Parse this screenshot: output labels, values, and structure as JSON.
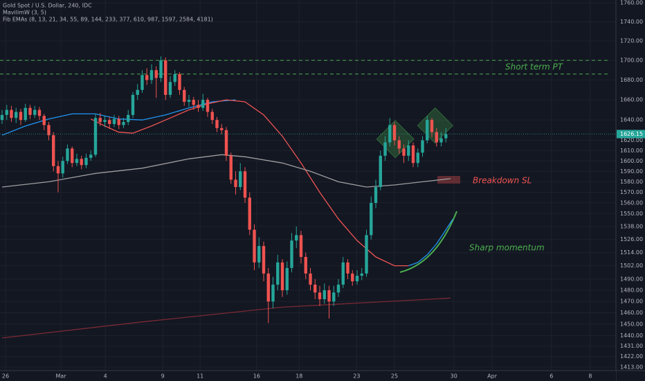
{
  "chart_data": {
    "type": "candlestick",
    "title": "Gold Spot / U.S. Dollar, 240, IDC",
    "indicators": [
      "MavilimW (3, 5)",
      "Fib EMAs (8, 13, 21, 34, 55, 89, 144, 233, 377, 610, 987, 1597, 2584, 4181)"
    ],
    "up_color": "#26a69a",
    "down_color": "#ef5350",
    "log": true,
    "grid": true,
    "xlim": [
      -0.44,
      131.4
    ],
    "ylim": [
      1410,
      1763
    ],
    "xticks": [
      {
        "value": 0.74,
        "label": "26"
      },
      {
        "value": 12.6,
        "label": "Mar"
      },
      {
        "value": 22.1,
        "label": "4"
      },
      {
        "value": 34.4,
        "label": "9"
      },
      {
        "value": 42.4,
        "label": "11"
      },
      {
        "value": 54.5,
        "label": "16"
      },
      {
        "value": 63.6,
        "label": "18"
      },
      {
        "value": 75.9,
        "label": "23"
      },
      {
        "value": 84,
        "label": "25"
      },
      {
        "value": 96.7,
        "label": "30"
      },
      {
        "value": 104.9,
        "label": "Apr"
      },
      {
        "value": 117.6,
        "label": "6"
      },
      {
        "value": 125.9,
        "label": "8"
      }
    ],
    "yticks": [
      {
        "value": 1760,
        "label": "1760.00"
      },
      {
        "value": 1740,
        "label": "1740.00"
      },
      {
        "value": 1720,
        "label": "1720.00"
      },
      {
        "value": 1700,
        "label": "1700.00"
      },
      {
        "value": 1680,
        "label": "1680.00"
      },
      {
        "value": 1660,
        "label": "1660.00"
      },
      {
        "value": 1640,
        "label": "1640.00"
      },
      {
        "value": 1620,
        "label": "1620.00"
      },
      {
        "value": 1610,
        "label": "1610.00"
      },
      {
        "value": 1600,
        "label": "1600.00"
      },
      {
        "value": 1590,
        "label": "1590.00"
      },
      {
        "value": 1580,
        "label": "1580.00"
      },
      {
        "value": 1570,
        "label": "1570.00"
      },
      {
        "value": 1560,
        "label": "1560.00"
      },
      {
        "value": 1550,
        "label": "1550.00"
      },
      {
        "value": 1538,
        "label": "1538.00"
      },
      {
        "value": 1526,
        "label": "1526.00"
      },
      {
        "value": 1514,
        "label": "1514.00"
      },
      {
        "value": 1502,
        "label": "1502.00"
      },
      {
        "value": 1490,
        "label": "1490.00"
      },
      {
        "value": 1480,
        "label": "1480.00"
      },
      {
        "value": 1470,
        "label": "1470.00"
      },
      {
        "value": 1460,
        "label": "1460.00"
      },
      {
        "value": 1450,
        "label": "1450.00"
      },
      {
        "value": 1440,
        "label": "1440.00"
      },
      {
        "value": 1431,
        "label": "1431.00"
      },
      {
        "value": 1422,
        "label": "1422.00"
      },
      {
        "value": 1413,
        "label": "1413.00"
      }
    ],
    "open": [
      1640,
      1645,
      1650,
      1642,
      1648,
      1640,
      1652,
      1645,
      1650,
      1644,
      1635,
      1625,
      1595,
      1588,
      1600,
      1612,
      1598,
      1602,
      1596,
      1603,
      1606,
      1642,
      1638,
      1640,
      1636,
      1641,
      1635,
      1638,
      1645,
      1665,
      1670,
      1685,
      1680,
      1690,
      1682,
      1700,
      1665,
      1678,
      1686,
      1670,
      1658,
      1660,
      1655,
      1652,
      1660,
      1648,
      1640,
      1632,
      1630,
      1605,
      1582,
      1575,
      1590,
      1565,
      1535,
      1505,
      1520,
      1495,
      1470,
      1485,
      1505,
      1480,
      1500,
      1525,
      1530,
      1510,
      1495,
      1485,
      1478,
      1472,
      1480,
      1470,
      1478,
      1485,
      1505,
      1495,
      1488,
      1493,
      1495,
      1530,
      1560,
      1575,
      1605,
      1618,
      1635,
      1620,
      1612,
      1605,
      1615,
      1598,
      1608,
      1620,
      1640,
      1628,
      1618,
      1622
    ],
    "high": [
      1650,
      1655,
      1654,
      1652,
      1651,
      1656,
      1655,
      1654,
      1653,
      1646,
      1638,
      1628,
      1600,
      1604,
      1616,
      1614,
      1607,
      1605,
      1607,
      1610,
      1646,
      1647,
      1644,
      1643,
      1645,
      1644,
      1642,
      1650,
      1668,
      1676,
      1690,
      1692,
      1696,
      1694,
      1704,
      1703,
      1684,
      1690,
      1688,
      1673,
      1665,
      1663,
      1660,
      1666,
      1662,
      1651,
      1643,
      1636,
      1633,
      1608,
      1590,
      1598,
      1594,
      1570,
      1540,
      1528,
      1524,
      1500,
      1492,
      1512,
      1508,
      1506,
      1532,
      1538,
      1534,
      1514,
      1500,
      1490,
      1484,
      1486,
      1484,
      1484,
      1490,
      1510,
      1508,
      1498,
      1498,
      1500,
      1535,
      1566,
      1582,
      1610,
      1624,
      1642,
      1638,
      1624,
      1616,
      1620,
      1618,
      1612,
      1624,
      1644,
      1642,
      1632,
      1628,
      1632
    ],
    "low": [
      1636,
      1640,
      1638,
      1637,
      1635,
      1638,
      1641,
      1642,
      1640,
      1630,
      1620,
      1590,
      1570,
      1584,
      1597,
      1594,
      1595,
      1592,
      1593,
      1600,
      1604,
      1634,
      1633,
      1631,
      1633,
      1631,
      1632,
      1635,
      1642,
      1660,
      1667,
      1675,
      1676,
      1662,
      1678,
      1660,
      1662,
      1674,
      1665,
      1654,
      1653,
      1650,
      1648,
      1649,
      1643,
      1636,
      1628,
      1626,
      1600,
      1578,
      1568,
      1572,
      1560,
      1530,
      1498,
      1500,
      1488,
      1451,
      1464,
      1480,
      1474,
      1476,
      1496,
      1518,
      1504,
      1490,
      1480,
      1472,
      1466,
      1468,
      1455,
      1466,
      1474,
      1482,
      1490,
      1484,
      1485,
      1489,
      1492,
      1526,
      1555,
      1572,
      1600,
      1614,
      1615,
      1607,
      1598,
      1600,
      1594,
      1594,
      1604,
      1617,
      1623,
      1614,
      1614,
      1618
    ],
    "close": [
      1645,
      1650,
      1642,
      1648,
      1640,
      1652,
      1645,
      1650,
      1644,
      1635,
      1625,
      1595,
      1588,
      1600,
      1612,
      1598,
      1602,
      1596,
      1603,
      1606,
      1642,
      1638,
      1640,
      1636,
      1641,
      1635,
      1638,
      1645,
      1665,
      1670,
      1685,
      1680,
      1690,
      1682,
      1700,
      1665,
      1678,
      1686,
      1670,
      1658,
      1660,
      1655,
      1652,
      1660,
      1648,
      1640,
      1632,
      1630,
      1605,
      1582,
      1575,
      1590,
      1565,
      1535,
      1505,
      1520,
      1495,
      1470,
      1485,
      1505,
      1480,
      1500,
      1525,
      1530,
      1510,
      1495,
      1485,
      1478,
      1472,
      1480,
      1470,
      1478,
      1485,
      1505,
      1495,
      1488,
      1493,
      1495,
      1530,
      1560,
      1575,
      1605,
      1618,
      1635,
      1620,
      1612,
      1605,
      1615,
      1598,
      1608,
      1620,
      1640,
      1628,
      1618,
      1622,
      1626.15
    ],
    "series": [
      {
        "color": "#2196f3",
        "x": [
          0,
          5,
          10,
          15,
          20,
          25,
          30,
          35,
          40,
          45,
          50
        ],
        "values": [
          1625,
          1634,
          1641,
          1646,
          1646,
          1641,
          1640,
          1645,
          1652,
          1658,
          1660
        ]
      },
      {
        "color": "#f05454",
        "x": [
          19,
          22,
          25,
          28,
          32,
          36,
          40,
          44,
          48,
          52,
          56,
          60,
          64,
          68,
          72,
          76,
          80,
          84,
          87
        ],
        "values": [
          1641,
          1634,
          1628,
          1627,
          1634,
          1642,
          1650,
          1656,
          1660,
          1658,
          1645,
          1624,
          1598,
          1570,
          1545,
          1525,
          1510,
          1502,
          1502
        ]
      },
      {
        "color": "#2196f3",
        "x": [
          87,
          89,
          91,
          93,
          95,
          96.5
        ],
        "values": [
          1502,
          1505,
          1512,
          1522,
          1535,
          1545
        ]
      },
      {
        "color": "#9e9e9e",
        "x": [
          0,
          10,
          20,
          30,
          40,
          47,
          52,
          60,
          66,
          72,
          78,
          84,
          90,
          96
        ],
        "values": [
          1575,
          1580,
          1588,
          1593,
          1602,
          1606,
          1604,
          1598,
          1590,
          1580,
          1575,
          1577,
          1580,
          1583
        ]
      },
      {
        "color": "#7a2a33",
        "x": [
          0,
          30,
          60,
          96
        ],
        "values": [
          1438,
          1452,
          1465,
          1473
        ]
      }
    ],
    "levels": [
      1700,
      1686
    ],
    "level_color": "#4caf50",
    "annotations": [
      "Short term PT",
      "Breakdown SL",
      "Sharp momentum"
    ]
  }
}
